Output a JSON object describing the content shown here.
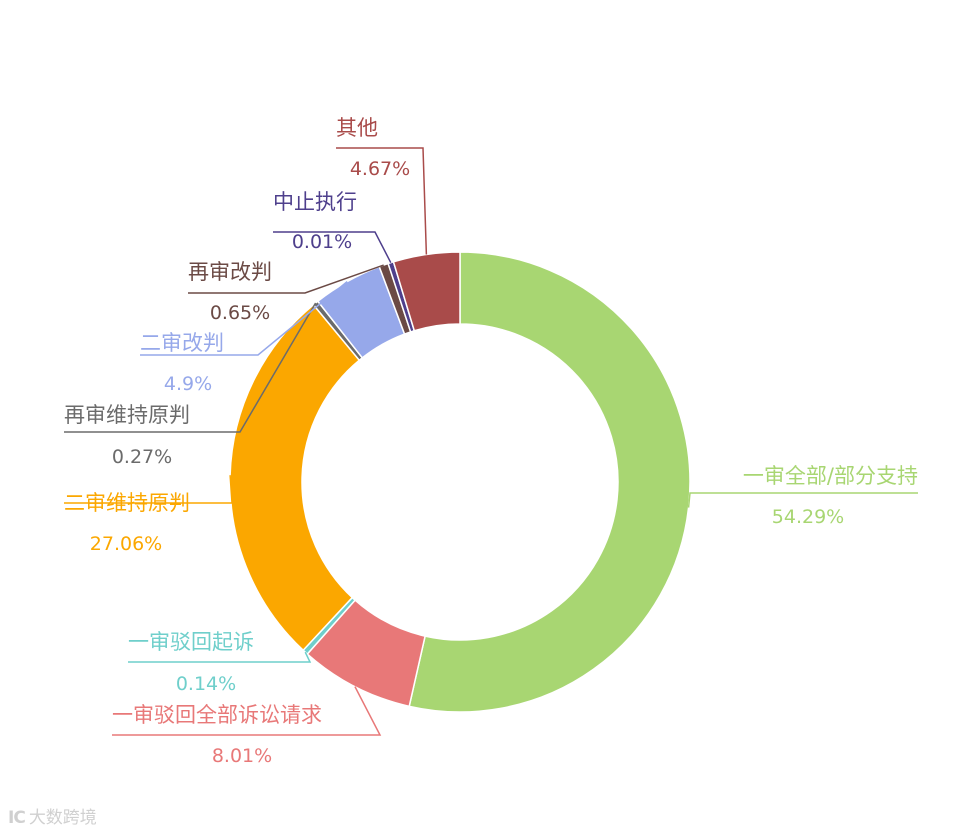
{
  "chart_data": {
    "type": "pie",
    "donut": true,
    "title": "",
    "slices": [
      {
        "label": "一审全部/部分支持",
        "value": 54.29,
        "pct_label": "54.29%",
        "color": "#a8d672"
      },
      {
        "label": "一审驳回全部诉讼请求",
        "value": 8.01,
        "pct_label": "8.01%",
        "color": "#e87878"
      },
      {
        "label": "一审驳回起诉",
        "value": 0.14,
        "pct_label": "0.14%",
        "color": "#6fcfcb"
      },
      {
        "label": "二审维持原判",
        "value": 27.06,
        "pct_label": "27.06%",
        "color": "#fba700"
      },
      {
        "label": "再审维持原判",
        "value": 0.27,
        "pct_label": "0.27%",
        "color": "#6b6b6b"
      },
      {
        "label": "二审改判",
        "value": 4.9,
        "pct_label": "4.9%",
        "color": "#96a8ea"
      },
      {
        "label": "再审改判",
        "value": 0.65,
        "pct_label": "0.65%",
        "color": "#6b4a45"
      },
      {
        "label": "中止执行",
        "value": 0.01,
        "pct_label": "0.01%",
        "color": "#4e3f8c"
      },
      {
        "label": "其他",
        "value": 4.67,
        "pct_label": "4.67%",
        "color": "#a94b4a"
      }
    ],
    "legend": "none"
  },
  "watermark": {
    "logo_text": "IC",
    "text": "大数跨境"
  }
}
